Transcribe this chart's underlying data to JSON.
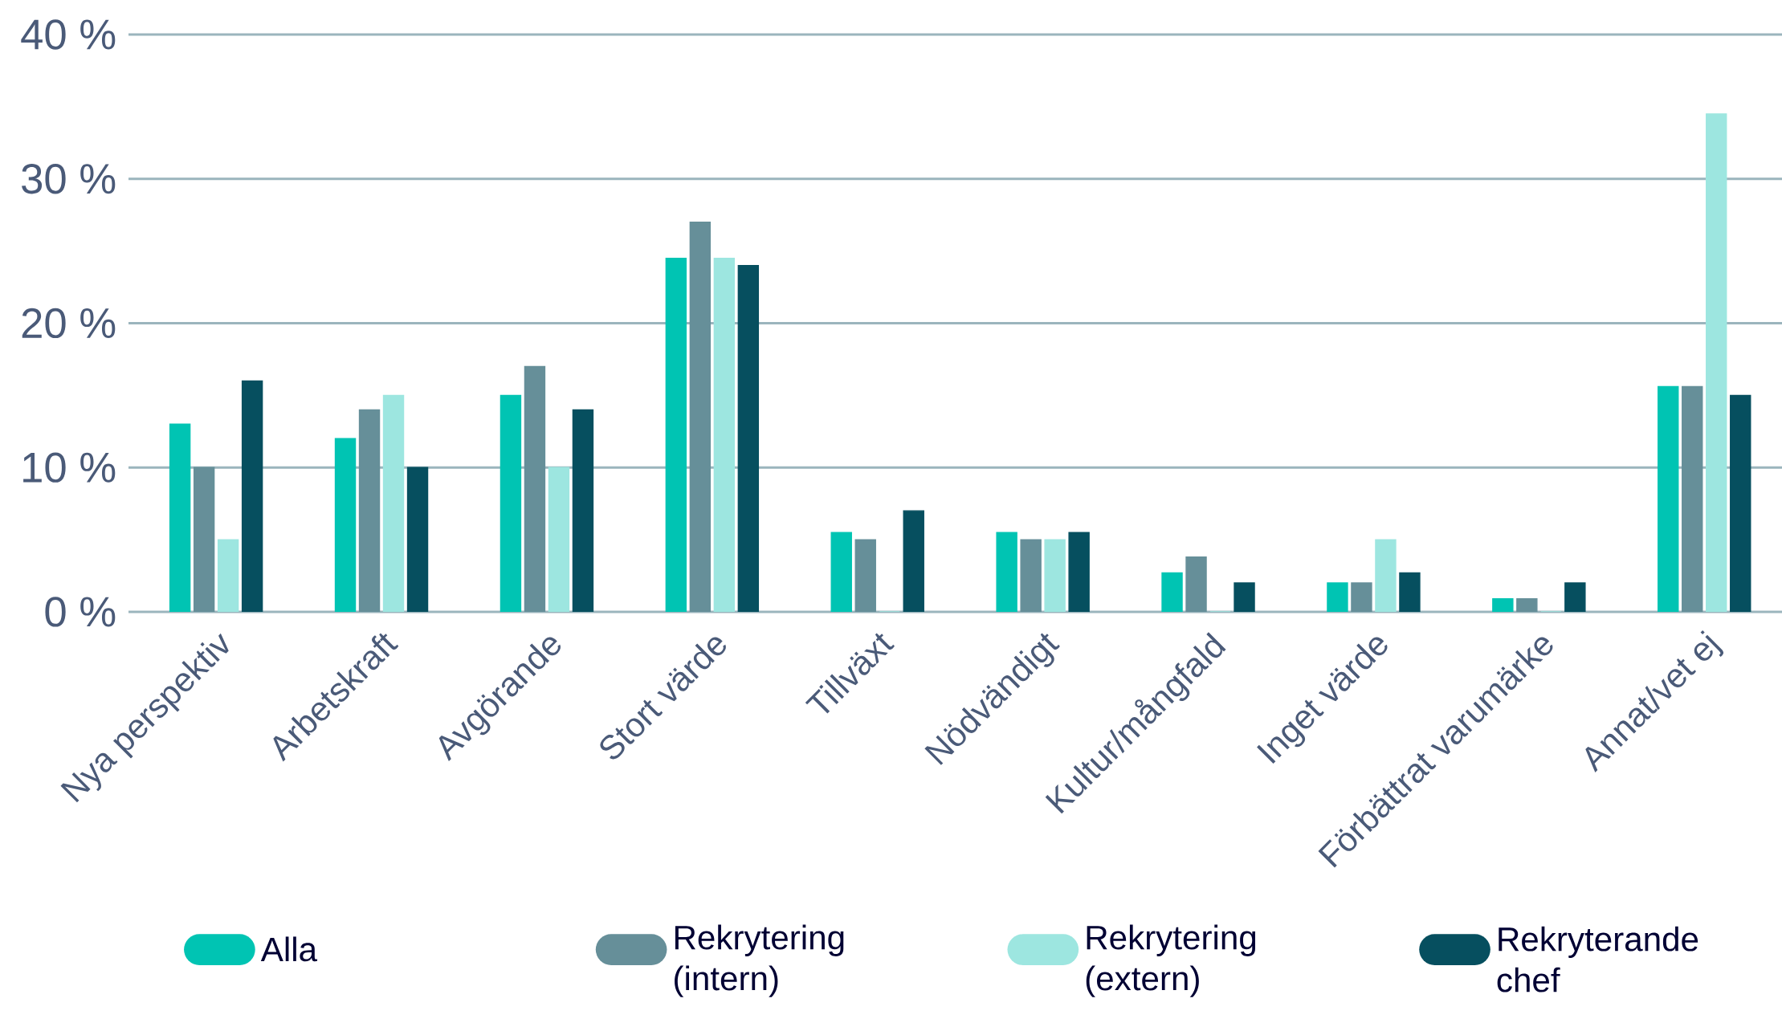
{
  "chart_data": {
    "type": "bar",
    "categories": [
      "Nya perspektiv",
      "Arbetskraft",
      "Avgörande",
      "Stort värde",
      "Tillväxt",
      "Nödvändigt",
      "Kultur/mångfald",
      "Inget värde",
      "Förbättrat varumärke",
      "Annat/vet ej"
    ],
    "series": [
      {
        "name": "Alla",
        "color": "#00c4b3",
        "values": [
          13,
          12,
          15,
          24.5,
          5.5,
          5.5,
          2.7,
          2,
          0.9,
          15.6
        ]
      },
      {
        "name": "Rekrytering (intern)",
        "color": "#668f99",
        "values": [
          10,
          14,
          17,
          27,
          5,
          5,
          3.8,
          2,
          0.9,
          15.6
        ]
      },
      {
        "name": "Rekrytering (extern)",
        "color": "#9de6e0",
        "values": [
          5,
          15,
          10,
          24.5,
          0,
          5,
          0,
          5,
          0,
          34.5
        ]
      },
      {
        "name": "Rekryterande chef",
        "color": "#064f5f",
        "values": [
          16,
          10,
          14,
          24,
          7,
          5.5,
          2,
          2.7,
          2,
          15
        ]
      }
    ],
    "ylim": [
      0,
      40
    ],
    "yticks": [
      {
        "value": 0,
        "label": "0 %"
      },
      {
        "value": 10,
        "label": "10 %"
      },
      {
        "value": 20,
        "label": "20 %"
      },
      {
        "value": 30,
        "label": "30 %"
      },
      {
        "value": 40,
        "label": "40 %"
      }
    ],
    "grid": "y",
    "legend": "bottom"
  }
}
